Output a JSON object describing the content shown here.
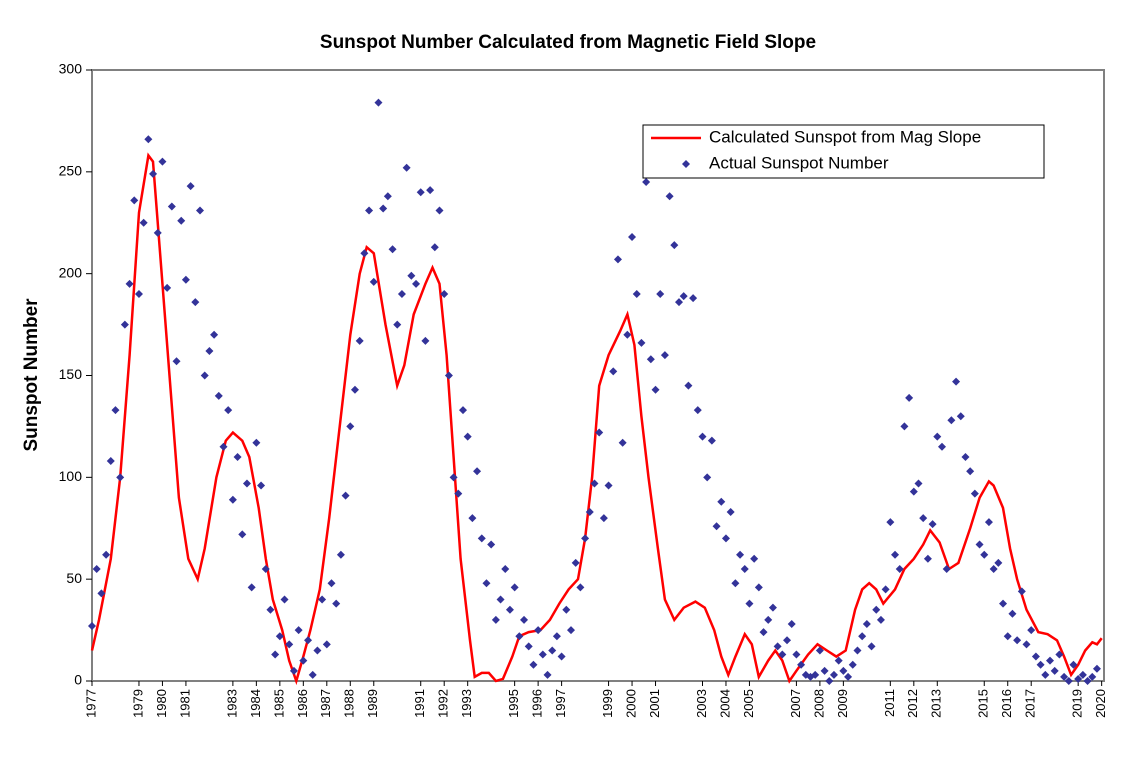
{
  "chart_data": {
    "type": "line",
    "title": "Sunspot Number Calculated from Magnetic Field Slope",
    "ylabel": "Sunspot Number",
    "xlim": [
      1977,
      2020.1
    ],
    "ylim": [
      0,
      300
    ],
    "yticks": [
      0,
      50,
      100,
      150,
      200,
      250,
      300
    ],
    "xticks": [
      1977,
      1979,
      1980,
      1981,
      1983,
      1984,
      1985,
      1986,
      1987,
      1988,
      1989,
      1991,
      1992,
      1993,
      1995,
      1996,
      1997,
      1999,
      2000,
      2001,
      2003,
      2004,
      2005,
      2007,
      2008,
      2009,
      2011,
      2012,
      2013,
      2015,
      2016,
      2017,
      2019,
      2020
    ],
    "grid": false,
    "legend": "upper right",
    "series": [
      {
        "name": "Calculated Sunspot from Mag Slope",
        "type": "line",
        "color": "#ff0000",
        "x": [
          1977.0,
          1977.3,
          1977.8,
          1978.2,
          1978.6,
          1979.0,
          1979.4,
          1979.6,
          1979.9,
          1980.3,
          1980.7,
          1981.1,
          1981.5,
          1981.8,
          1982.3,
          1982.7,
          1983.0,
          1983.4,
          1983.7,
          1984.1,
          1984.4,
          1984.7,
          1985.1,
          1985.4,
          1985.7,
          1986.0,
          1986.3,
          1986.7,
          1987.1,
          1987.6,
          1988.0,
          1988.4,
          1988.7,
          1989.0,
          1989.5,
          1990.0,
          1990.3,
          1990.7,
          1991.2,
          1991.5,
          1991.8,
          1992.1,
          1992.4,
          1992.7,
          1993.1,
          1993.3,
          1993.6,
          1993.9,
          1994.2,
          1994.5,
          1994.9,
          1995.2,
          1995.6,
          1996.1,
          1996.5,
          1996.9,
          1997.3,
          1997.7,
          1998.0,
          1998.3,
          1998.6,
          1999.0,
          1999.5,
          1999.8,
          2000.1,
          2000.4,
          2000.7,
          2001.1,
          2001.4,
          2001.8,
          2002.2,
          2002.7,
          2003.1,
          2003.5,
          2003.8,
          2004.1,
          2004.4,
          2004.8,
          2005.1,
          2005.4,
          2005.8,
          2006.1,
          2006.4,
          2006.7,
          2007.0,
          2007.5,
          2007.9,
          2008.3,
          2008.7,
          2009.1,
          2009.5,
          2009.8,
          2010.1,
          2010.4,
          2010.7,
          2011.2,
          2011.6,
          2012.0,
          2012.4,
          2012.7,
          2013.1,
          2013.5,
          2013.9,
          2014.4,
          2014.8,
          2015.2,
          2015.4,
          2015.8,
          2016.1,
          2016.4,
          2016.8,
          2017.3,
          2017.7,
          2018.1,
          2018.4,
          2018.7,
          2019.0,
          2019.3,
          2019.6,
          2019.8,
          2020.0
        ],
        "values": [
          15,
          30,
          60,
          100,
          160,
          230,
          258,
          255,
          210,
          150,
          90,
          60,
          50,
          65,
          100,
          118,
          122,
          118,
          110,
          85,
          60,
          40,
          25,
          10,
          0,
          12,
          25,
          45,
          80,
          130,
          170,
          200,
          213,
          210,
          175,
          145,
          155,
          180,
          195,
          203,
          195,
          160,
          110,
          60,
          20,
          2,
          4,
          4,
          0,
          1,
          12,
          22,
          24,
          25,
          30,
          38,
          45,
          50,
          70,
          100,
          145,
          160,
          172,
          180,
          165,
          130,
          100,
          65,
          40,
          30,
          36,
          39,
          36,
          25,
          12,
          3,
          12,
          23,
          18,
          2,
          10,
          15,
          10,
          0,
          5,
          13,
          18,
          15,
          12,
          15,
          35,
          45,
          48,
          45,
          38,
          45,
          55,
          60,
          67,
          74,
          68,
          55,
          58,
          75,
          90,
          98,
          96,
          85,
          65,
          50,
          35,
          24,
          23,
          20,
          12,
          3,
          8,
          15,
          19,
          18,
          21
        ]
      },
      {
        "name": "Actual Sunspot Number",
        "type": "scatter",
        "color": "#333399",
        "x": [
          1977,
          1977.2,
          1977.4,
          1977.6,
          1977.8,
          1978,
          1978.2,
          1978.4,
          1978.6,
          1978.8,
          1979,
          1979.2,
          1979.4,
          1979.6,
          1979.8,
          1980,
          1980.2,
          1980.4,
          1980.6,
          1980.8,
          1981,
          1981.2,
          1981.4,
          1981.6,
          1981.8,
          1982,
          1982.2,
          1982.4,
          1982.6,
          1982.8,
          1983,
          1983.2,
          1983.4,
          1983.6,
          1983.8,
          1984,
          1984.2,
          1984.4,
          1984.6,
          1984.8,
          1985,
          1985.2,
          1985.4,
          1985.6,
          1985.8,
          1986,
          1986.2,
          1986.4,
          1986.6,
          1986.8,
          1987,
          1987.2,
          1987.4,
          1987.6,
          1987.8,
          1988,
          1988.2,
          1988.4,
          1988.6,
          1988.8,
          1989,
          1989.2,
          1989.4,
          1989.6,
          1989.8,
          1990,
          1990.2,
          1990.4,
          1990.6,
          1990.8,
          1991,
          1991.2,
          1991.4,
          1991.6,
          1991.8,
          1992,
          1992.2,
          1992.4,
          1992.6,
          1992.8,
          1993,
          1993.2,
          1993.4,
          1993.6,
          1993.8,
          1994,
          1994.2,
          1994.4,
          1994.6,
          1994.8,
          1995,
          1995.2,
          1995.4,
          1995.6,
          1995.8,
          1996,
          1996.2,
          1996.4,
          1996.6,
          1996.8,
          1997,
          1997.2,
          1997.4,
          1997.6,
          1997.8,
          1998,
          1998.2,
          1998.4,
          1998.6,
          1998.8,
          1999,
          1999.2,
          1999.4,
          1999.6,
          1999.8,
          2000,
          2000.2,
          2000.4,
          2000.6,
          2000.8,
          2001,
          2001.2,
          2001.4,
          2001.6,
          2001.8,
          2002,
          2002.2,
          2002.4,
          2002.6,
          2002.8,
          2003,
          2003.2,
          2003.4,
          2003.6,
          2003.8,
          2004,
          2004.2,
          2004.4,
          2004.6,
          2004.8,
          2005,
          2005.2,
          2005.4,
          2005.6,
          2005.8,
          2006,
          2006.2,
          2006.4,
          2006.6,
          2006.8,
          2007,
          2007.2,
          2007.4,
          2007.6,
          2007.8,
          2008,
          2008.2,
          2008.4,
          2008.6,
          2008.8,
          2009,
          2009.2,
          2009.4,
          2009.6,
          2009.8,
          2010,
          2010.2,
          2010.4,
          2010.6,
          2010.8,
          2011,
          2011.2,
          2011.4,
          2011.6,
          2011.8,
          2012,
          2012.2,
          2012.4,
          2012.6,
          2012.8,
          2013,
          2013.2,
          2013.4,
          2013.6,
          2013.8,
          2014,
          2014.2,
          2014.4,
          2014.6,
          2014.8,
          2015,
          2015.2,
          2015.4,
          2015.6,
          2015.8,
          2016,
          2016.2,
          2016.4,
          2016.6,
          2016.8,
          2017,
          2017.2,
          2017.4,
          2017.6,
          2017.8,
          2018,
          2018.2,
          2018.4,
          2018.6,
          2018.8,
          2019,
          2019.2,
          2019.4,
          2019.6,
          2019.8
        ],
        "values": [
          27,
          55,
          43,
          62,
          108,
          133,
          100,
          175,
          195,
          236,
          190,
          225,
          266,
          249,
          220,
          255,
          193,
          233,
          157,
          226,
          197,
          243,
          186,
          231,
          150,
          162,
          170,
          140,
          115,
          133,
          89,
          110,
          72,
          97,
          46,
          117,
          96,
          55,
          35,
          13,
          22,
          40,
          18,
          5,
          25,
          10,
          20,
          3,
          15,
          40,
          18,
          48,
          38,
          62,
          91,
          125,
          143,
          167,
          210,
          231,
          196,
          284,
          232,
          238,
          212,
          175,
          190,
          252,
          199,
          195,
          240,
          167,
          241,
          213,
          231,
          190,
          150,
          100,
          92,
          133,
          120,
          80,
          103,
          70,
          48,
          67,
          30,
          40,
          55,
          35,
          46,
          22,
          30,
          17,
          8,
          25,
          13,
          3,
          15,
          22,
          12,
          35,
          25,
          58,
          46,
          70,
          83,
          97,
          122,
          80,
          96,
          152,
          207,
          117,
          170,
          218,
          190,
          166,
          245,
          158,
          143,
          190,
          160,
          238,
          214,
          186,
          189,
          145,
          188,
          133,
          120,
          100,
          118,
          76,
          88,
          70,
          83,
          48,
          62,
          55,
          38,
          60,
          46,
          24,
          30,
          36,
          17,
          13,
          20,
          28,
          13,
          8,
          3,
          2,
          3,
          15,
          5,
          0,
          3,
          10,
          5,
          2,
          8,
          15,
          22,
          28,
          17,
          35,
          30,
          45,
          78,
          62,
          55,
          125,
          139,
          93,
          97,
          80,
          60,
          77,
          120,
          115,
          55,
          128,
          147,
          130,
          110,
          103,
          92,
          67,
          62,
          78,
          55,
          58,
          38,
          22,
          33,
          20,
          44,
          18,
          25,
          12,
          8,
          3,
          10,
          5,
          13,
          2,
          0,
          8,
          1,
          3,
          0,
          2,
          6
        ]
      }
    ]
  }
}
